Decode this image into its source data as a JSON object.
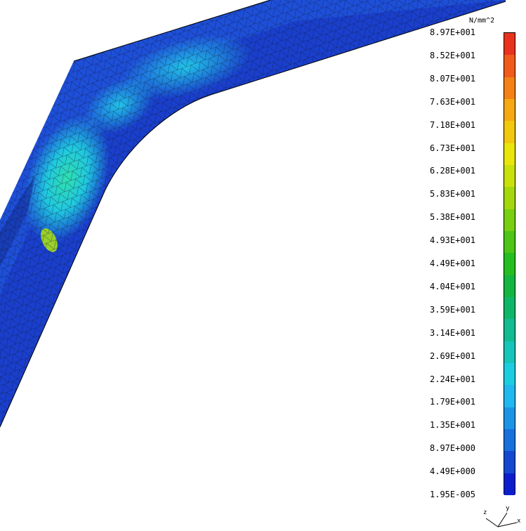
{
  "legend": {
    "unit": "N/mm^2",
    "ticks": [
      "8.97E+001",
      "8.52E+001",
      "8.07E+001",
      "7.63E+001",
      "7.18E+001",
      "6.73E+001",
      "6.28E+001",
      "5.83E+001",
      "5.38E+001",
      "4.93E+001",
      "4.49E+001",
      "4.04E+001",
      "3.59E+001",
      "3.14E+001",
      "2.69E+001",
      "2.24E+001",
      "1.79E+001",
      "1.35E+001",
      "8.97E+000",
      "4.49E+000",
      "1.95E-005"
    ],
    "colors": [
      "#e8321e",
      "#f05a1a",
      "#f38116",
      "#f5a812",
      "#f2c80e",
      "#e8e60a",
      "#c8e10c",
      "#a4d70e",
      "#78ce10",
      "#4cc516",
      "#26bd20",
      "#14b540",
      "#10b668",
      "#12bb90",
      "#16c4b8",
      "#1ccde0",
      "#20b8ee",
      "#1c94e6",
      "#1870dc",
      "#1448d0",
      "#0c1ecc"
    ]
  },
  "triad": {
    "z": "z",
    "y": "y",
    "x": "x"
  }
}
